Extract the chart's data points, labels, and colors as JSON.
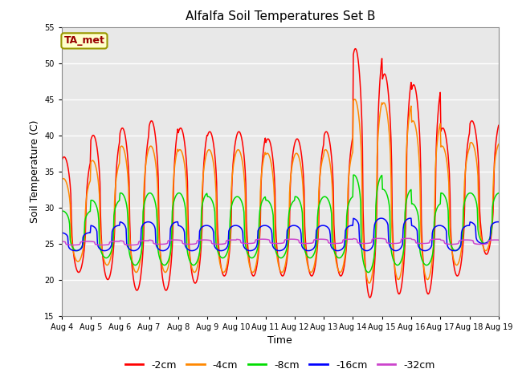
{
  "title": "Alfalfa Soil Temperatures Set B",
  "xlabel": "Time",
  "ylabel": "Soil Temperature (C)",
  "ylim": [
    15,
    55
  ],
  "yticks": [
    15,
    20,
    25,
    30,
    35,
    40,
    45,
    50,
    55
  ],
  "bg_color": "#e8e8e8",
  "annotation_text": "TA_met",
  "annotation_bg": "#ffffcc",
  "annotation_border": "#999900",
  "annotation_text_color": "#990000",
  "legend_labels": [
    "-2cm",
    "-4cm",
    "-8cm",
    "-16cm",
    "-32cm"
  ],
  "colors": [
    "#ff0000",
    "#ff8800",
    "#00dd00",
    "#0000ff",
    "#cc44cc"
  ],
  "n_days": 15,
  "xtick_labels": [
    "Aug 4",
    "Aug 5",
    "Aug 6",
    "Aug 7",
    "Aug 8",
    "Aug 9",
    "Aug 10",
    "Aug 11",
    "Aug 12",
    "Aug 13",
    "Aug 14",
    "Aug 15",
    "Aug 16",
    "Aug 17",
    "Aug 18",
    "Aug 19"
  ],
  "pts_per_day": 48
}
